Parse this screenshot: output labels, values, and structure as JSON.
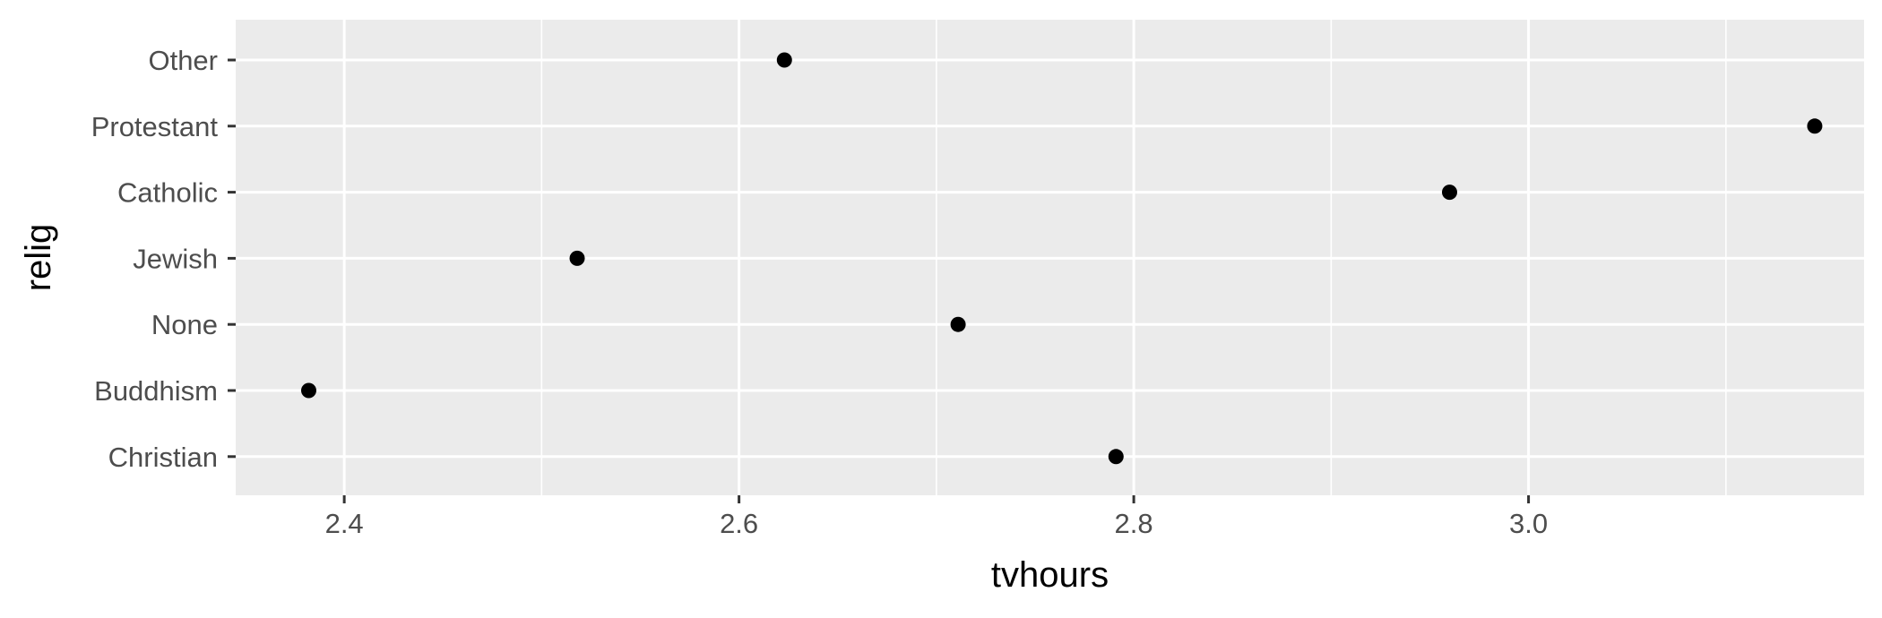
{
  "chart_data": {
    "type": "scatter",
    "title": "",
    "xlabel": "tvhours",
    "ylabel": "relig",
    "xlim": [
      2.345,
      3.17
    ],
    "x_ticks": [
      {
        "value": 2.4,
        "label": "2.4"
      },
      {
        "value": 2.6,
        "label": "2.6"
      },
      {
        "value": 2.8,
        "label": "2.8"
      },
      {
        "value": 3.0,
        "label": "3.0"
      }
    ],
    "categories": [
      "Other",
      "Protestant",
      "Catholic",
      "Jewish",
      "None",
      "Buddhism",
      "Christian"
    ],
    "points": [
      {
        "relig": "Other",
        "tvhours": 2.623
      },
      {
        "relig": "Protestant",
        "tvhours": 3.145
      },
      {
        "relig": "Catholic",
        "tvhours": 2.96
      },
      {
        "relig": "Jewish",
        "tvhours": 2.518
      },
      {
        "relig": "None",
        "tvhours": 2.711
      },
      {
        "relig": "Buddhism",
        "tvhours": 2.382
      },
      {
        "relig": "Christian",
        "tvhours": 2.791
      }
    ],
    "grid": true,
    "legend": "none",
    "colors": {
      "panel_background": "#ebebeb",
      "grid": "#ffffff",
      "point": "#000000",
      "tick_text": "#4d4d4d",
      "tick_mark": "#333333"
    }
  }
}
